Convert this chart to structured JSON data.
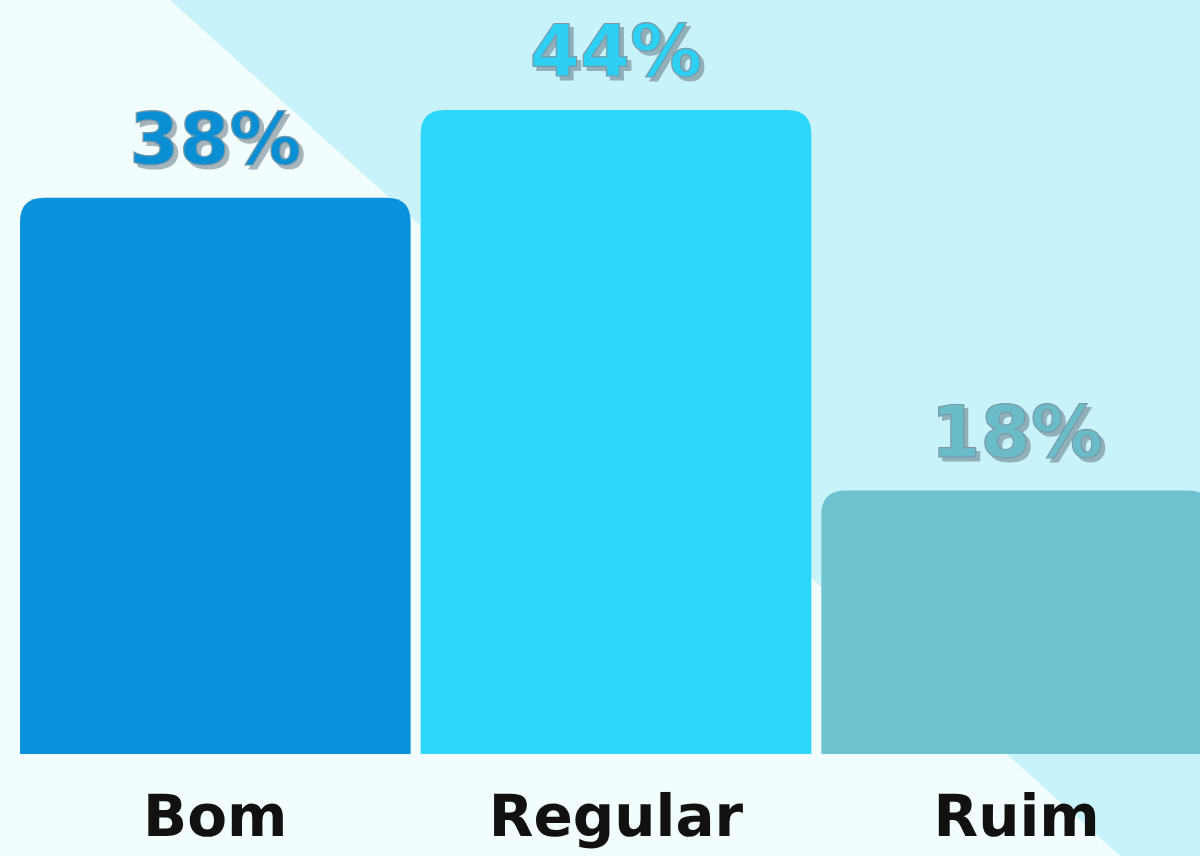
{
  "chart_data": {
    "type": "bar",
    "categories": [
      "Bom",
      "Regular",
      "Ruim"
    ],
    "values": [
      38,
      44,
      18
    ],
    "colors": [
      "#0a93dc",
      "#2fd6fb",
      "#6fc3d0"
    ],
    "value_labels": [
      "38%",
      "44%",
      "18%"
    ],
    "ylim": [
      0,
      44
    ],
    "tick_labels": "x"
  }
}
